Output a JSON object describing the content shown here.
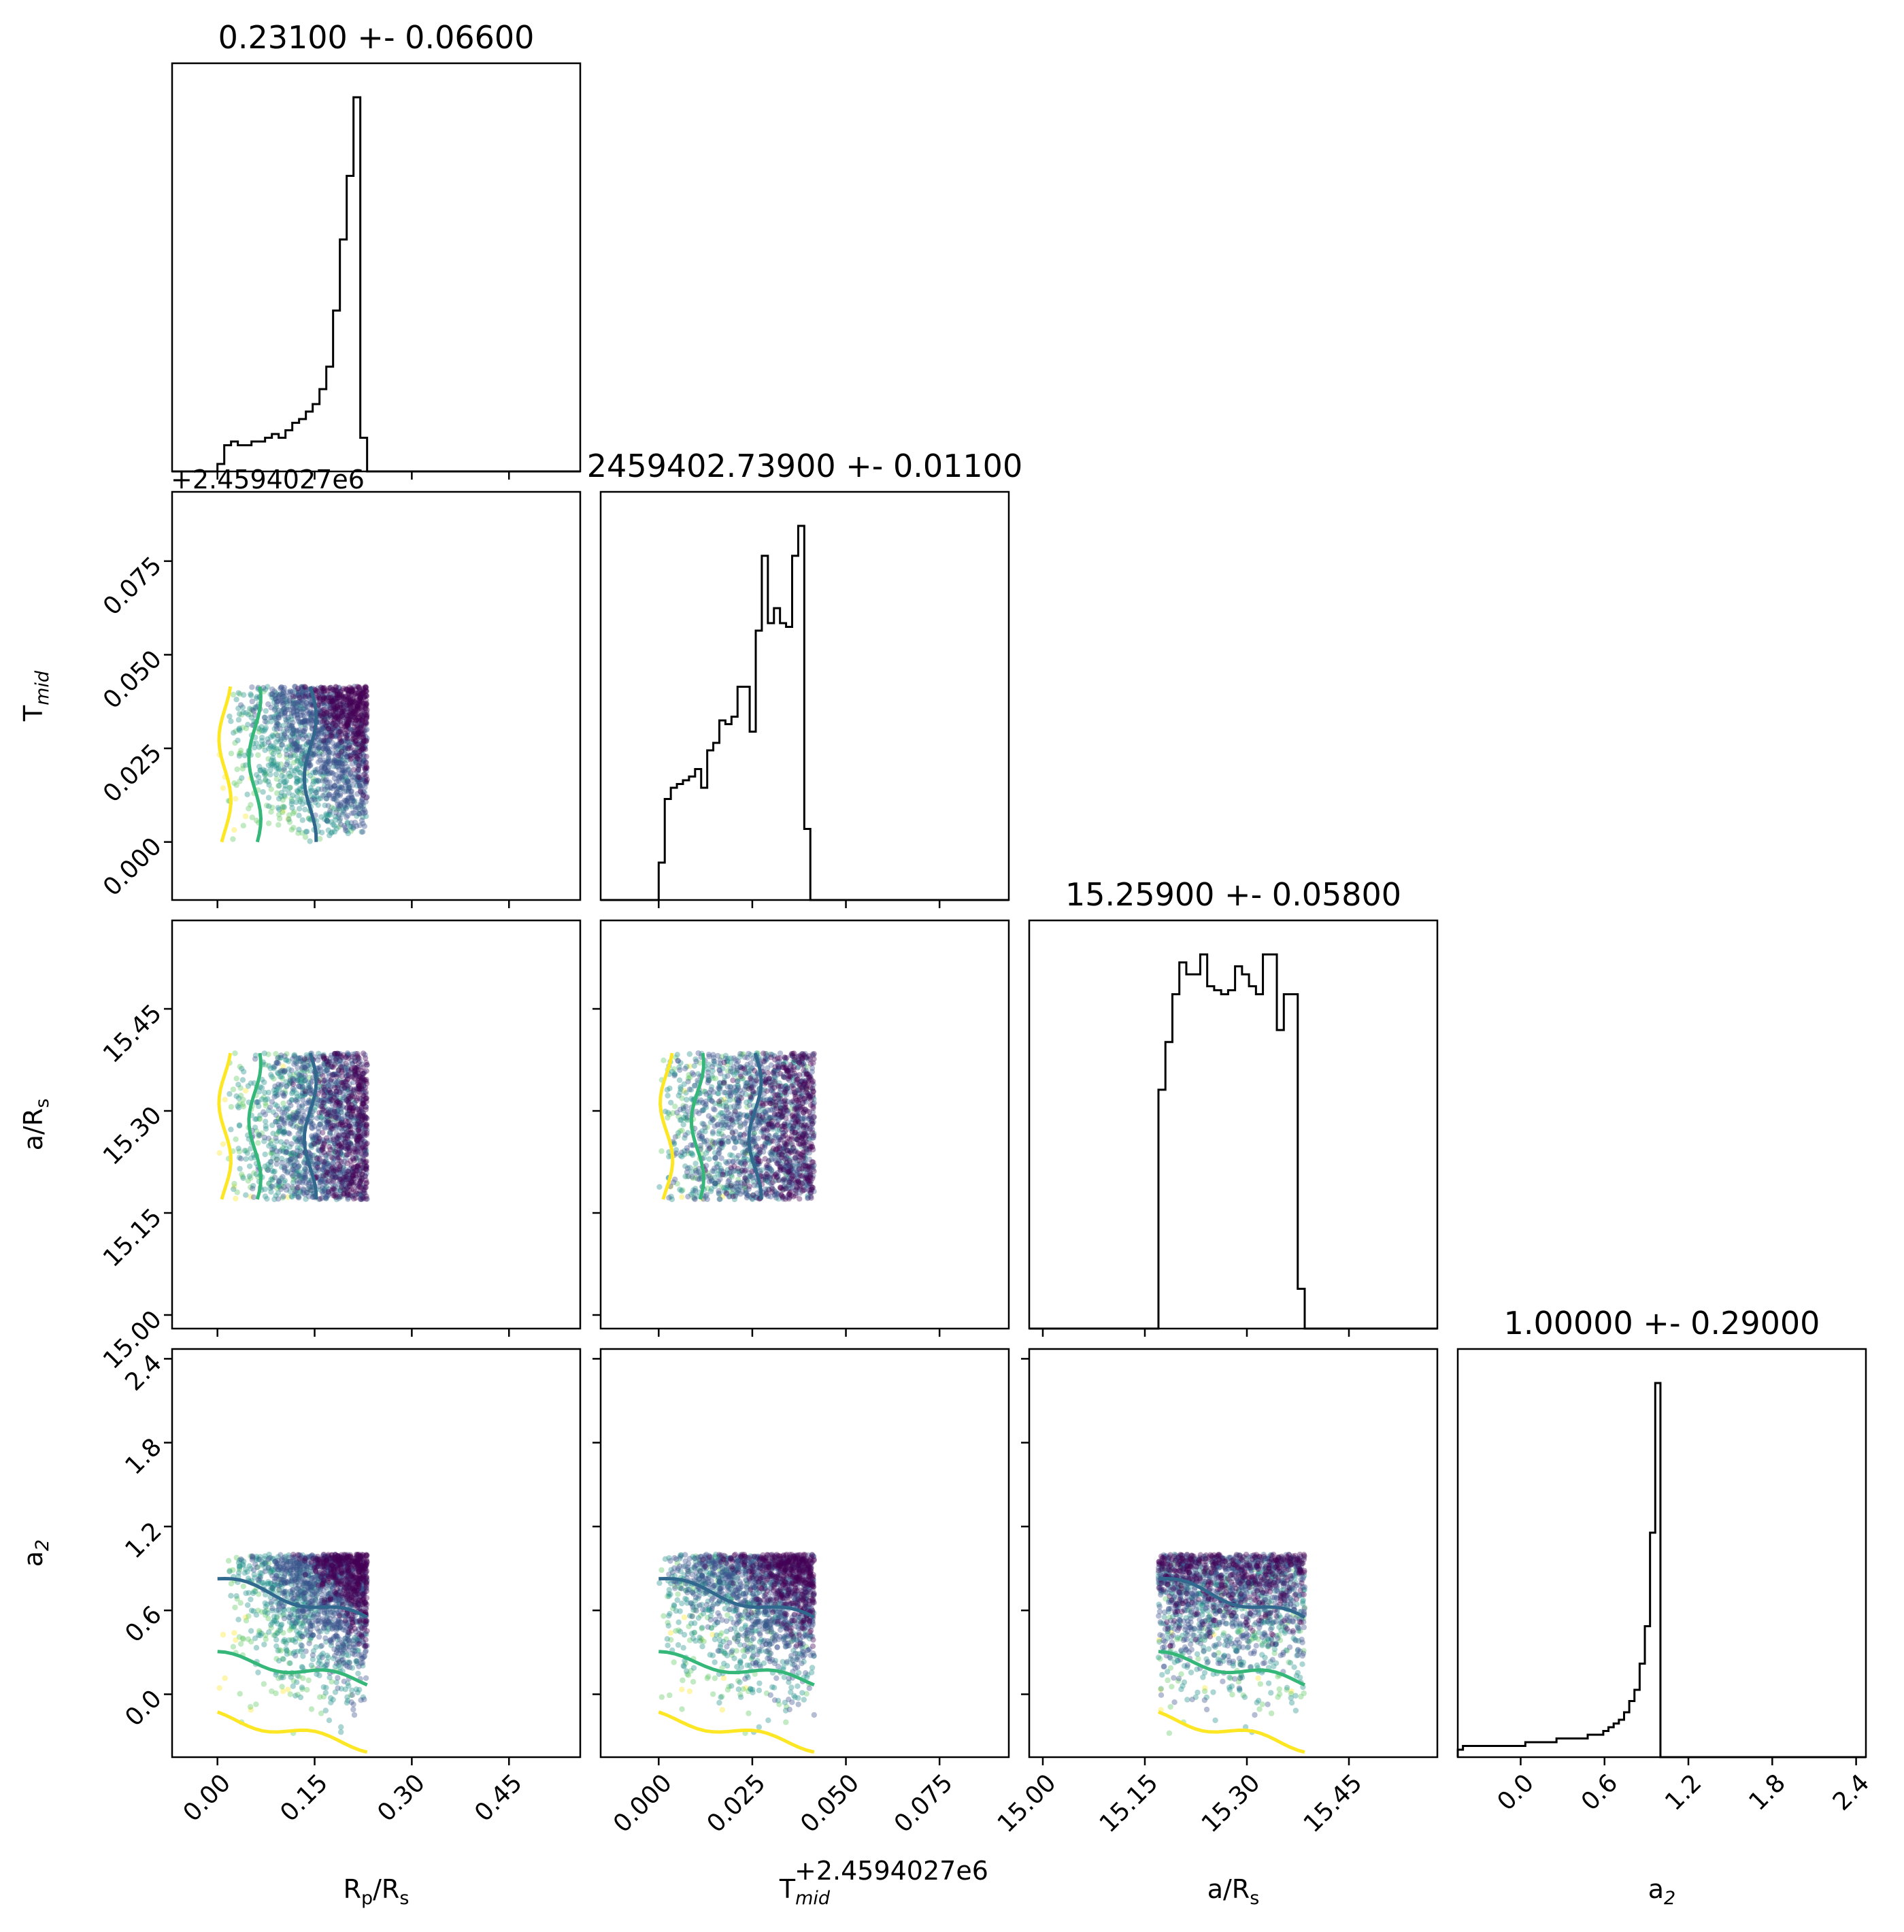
{
  "chart_data": {
    "type": "scatter",
    "subtype": "corner-plot",
    "parameters": [
      {
        "key": "rp",
        "label_main": "R",
        "label_sub": "p",
        "label_tail": "/R",
        "label_tail_sub": "s",
        "range": [
          -0.07,
          0.56
        ],
        "ticks": [
          "0.00",
          "0.15",
          "0.30",
          "0.45"
        ],
        "title": "0.23100 +- 0.06600"
      },
      {
        "key": "tmid",
        "label_main": "T",
        "label_sub": "mid",
        "label_tail": "",
        "label_tail_sub": "",
        "range": [
          -0.0155,
          0.0935
        ],
        "ticks": [
          "0.000",
          "0.025",
          "0.050",
          "0.075"
        ],
        "offset_text": "+2.4594027e6",
        "title": "2459402.73900 +- 0.01100"
      },
      {
        "key": "ars",
        "label_main": "a/R",
        "label_sub": "s",
        "label_tail": "",
        "label_tail_sub": "",
        "range": [
          14.98,
          15.58
        ],
        "ticks": [
          "15.00",
          "15.15",
          "15.30",
          "15.45"
        ],
        "title": "15.25900 +- 0.05800"
      },
      {
        "key": "a2",
        "label_main": "a",
        "label_sub": "2",
        "label_tail": "",
        "label_tail_sub": "",
        "range": [
          -0.45,
          2.47
        ],
        "ticks": [
          "0.0",
          "0.6",
          "1.2",
          "1.8",
          "2.4"
        ],
        "title": "1.00000 +- 0.29000"
      }
    ],
    "histograms": [
      {
        "param": "rp",
        "edges_min": 0.0,
        "edges_max": 0.231,
        "values": [
          2,
          7,
          8,
          7,
          7,
          8,
          8,
          9,
          10,
          9,
          11,
          13,
          14,
          16,
          18,
          22,
          28,
          43,
          62,
          79,
          100,
          9
        ]
      },
      {
        "param": "tmid",
        "edges_min": 0.0,
        "edges_max": 0.0405,
        "values": [
          10,
          27,
          30,
          31,
          32,
          33,
          35,
          30,
          40,
          42,
          48,
          47,
          49,
          57,
          57,
          45,
          72,
          92,
          74,
          78,
          74,
          73,
          92,
          100,
          19
        ]
      },
      {
        "param": "ars",
        "edges_min": 15.17,
        "edges_max": 15.385,
        "values": [
          60,
          72,
          84,
          92,
          89,
          89,
          94,
          86,
          85,
          84,
          85,
          91,
          89,
          86,
          84,
          94,
          94,
          75,
          84,
          84,
          10
        ]
      },
      {
        "param": "a2",
        "edges_min": -0.45,
        "edges_max": 1.0,
        "values": [
          2,
          3,
          3,
          3,
          3,
          3,
          3,
          3,
          3,
          3,
          3,
          3,
          3,
          4,
          4,
          4,
          4,
          4,
          4,
          5,
          5,
          5,
          5,
          5,
          5,
          6,
          6,
          6,
          7,
          8,
          9,
          10,
          12,
          15,
          18,
          25,
          35,
          60,
          100
        ]
      }
    ],
    "scatter_region": {
      "rp": [
        0.0,
        0.231
      ],
      "tmid": [
        0.0,
        0.0415
      ],
      "ars": [
        15.17,
        15.385
      ],
      "a2": [
        -0.45,
        1.0
      ]
    },
    "colormap": "viridis",
    "contour_colors": [
      "#31688e",
      "#35b779",
      "#fde725"
    ],
    "point_colors": [
      "#440154",
      "#3b528b",
      "#21918c",
      "#5ec962",
      "#fde725"
    ],
    "hist_color": "#000000"
  }
}
